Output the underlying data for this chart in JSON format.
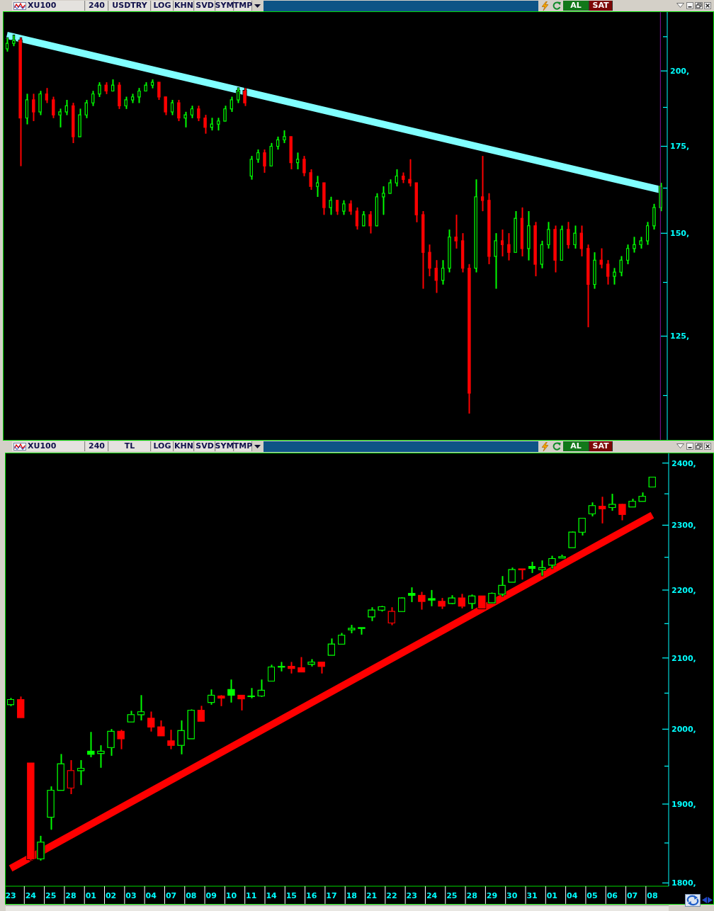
{
  "chart_data": [
    {
      "type": "candlestick",
      "title": "XU100",
      "annotations": [
        "240",
        "USDTRY",
        "LOG",
        "KHN",
        "SVD",
        "SYM",
        "TMP",
        "AL",
        "SAT"
      ],
      "categories": [
        null,
        null,
        null,
        null,
        null,
        null,
        null,
        null,
        null,
        null,
        null,
        null,
        null,
        null,
        null,
        null,
        null,
        null,
        null,
        null,
        null,
        null,
        null,
        null,
        null,
        null,
        null,
        null,
        null,
        null,
        null,
        null,
        null,
        null,
        null,
        null,
        null,
        null,
        null,
        null,
        null,
        null,
        null,
        null,
        null,
        null,
        null,
        null,
        null,
        null,
        null,
        null,
        null,
        null,
        null,
        null,
        null,
        null,
        null,
        null,
        null,
        null,
        null,
        null,
        null,
        null,
        null,
        null,
        null,
        null,
        null,
        null,
        null,
        null,
        null,
        null,
        null,
        null,
        null,
        null,
        null,
        null,
        null,
        null,
        null,
        null,
        null,
        null,
        null,
        null,
        null,
        null,
        null,
        null,
        null,
        null,
        null,
        null,
        null,
        null
      ],
      "ohlc": [
        [
          208,
          212,
          207,
          210
        ],
        [
          210,
          213,
          209,
          211
        ],
        [
          211,
          212,
          169,
          184
        ],
        [
          184,
          192,
          182,
          190
        ],
        [
          190,
          192,
          183,
          186
        ],
        [
          186,
          193,
          185,
          192
        ],
        [
          192,
          194,
          189,
          190
        ],
        [
          190,
          191,
          184,
          185
        ],
        [
          185,
          187,
          181,
          186
        ],
        [
          186,
          190,
          185,
          188
        ],
        [
          188,
          189,
          176,
          178
        ],
        [
          178,
          187,
          178,
          185
        ],
        [
          185,
          190,
          184,
          189
        ],
        [
          189,
          193,
          188,
          192
        ],
        [
          192,
          196,
          191,
          195
        ],
        [
          195,
          196,
          192,
          193
        ],
        [
          193,
          197,
          193,
          195
        ],
        [
          195,
          196,
          187,
          188
        ],
        [
          188,
          191,
          187,
          190
        ],
        [
          190,
          192,
          189,
          191
        ],
        [
          191,
          194,
          189,
          193
        ],
        [
          193,
          196,
          193,
          195
        ],
        [
          195,
          197,
          194,
          196
        ],
        [
          196,
          196,
          190,
          191
        ],
        [
          191,
          191,
          185,
          186
        ],
        [
          186,
          190,
          185,
          189
        ],
        [
          189,
          190,
          183,
          184
        ],
        [
          184,
          186,
          181,
          185
        ],
        [
          185,
          188,
          184,
          187
        ],
        [
          187,
          188,
          183,
          184
        ],
        [
          184,
          185,
          179,
          181
        ],
        [
          181,
          184,
          180,
          182
        ],
        [
          182,
          184,
          180,
          183
        ],
        [
          183,
          188,
          183,
          187
        ],
        [
          187,
          191,
          186,
          190
        ],
        [
          190,
          194,
          189,
          193
        ],
        [
          193,
          194,
          188,
          189
        ],
        [
          166,
          172,
          165,
          171
        ],
        [
          171,
          174,
          170,
          173
        ],
        [
          173,
          174,
          167,
          169
        ],
        [
          169,
          176,
          169,
          175
        ],
        [
          175,
          178,
          174,
          177
        ],
        [
          177,
          180,
          176,
          178
        ],
        [
          178,
          178,
          168,
          170
        ],
        [
          170,
          173,
          168,
          171
        ],
        [
          171,
          172,
          166,
          167
        ],
        [
          167,
          168,
          162,
          163
        ],
        [
          163,
          166,
          160,
          164
        ],
        [
          164,
          164,
          155,
          157
        ],
        [
          157,
          160,
          155,
          159
        ],
        [
          159,
          159,
          155,
          156
        ],
        [
          156,
          159,
          155,
          158
        ],
        [
          158,
          159,
          155,
          156
        ],
        [
          156,
          157,
          151,
          152
        ],
        [
          152,
          156,
          152,
          155
        ],
        [
          155,
          156,
          150,
          152
        ],
        [
          152,
          161,
          152,
          160
        ],
        [
          160,
          163,
          155,
          161
        ],
        [
          161,
          165,
          161,
          164
        ],
        [
          164,
          168,
          163,
          166
        ],
        [
          166,
          167,
          164,
          165
        ],
        [
          165,
          171,
          163,
          164
        ],
        [
          164,
          164,
          153,
          155
        ],
        [
          155,
          156,
          136,
          145
        ],
        [
          145,
          147,
          139,
          141
        ],
        [
          141,
          143,
          135,
          138
        ],
        [
          138,
          143,
          137,
          141
        ],
        [
          141,
          151,
          140,
          149
        ],
        [
          149,
          155,
          146,
          148
        ],
        [
          148,
          150,
          140,
          141
        ],
        [
          141,
          142,
          109,
          113
        ],
        [
          141,
          165,
          140,
          160
        ],
        [
          160,
          172,
          156,
          159
        ],
        [
          159,
          161,
          142,
          144
        ],
        [
          144,
          150,
          136,
          148
        ],
        [
          148,
          151,
          144,
          147
        ],
        [
          147,
          150,
          143,
          145
        ],
        [
          145,
          156,
          145,
          154
        ],
        [
          154,
          157,
          144,
          146
        ],
        [
          146,
          156,
          143,
          152
        ],
        [
          152,
          153,
          139,
          142
        ],
        [
          142,
          148,
          141,
          147
        ],
        [
          147,
          153,
          146,
          151
        ],
        [
          151,
          152,
          140,
          143
        ],
        [
          143,
          152,
          143,
          151
        ],
        [
          151,
          153,
          146,
          147
        ],
        [
          147,
          152,
          146,
          150
        ],
        [
          150,
          152,
          144,
          146
        ],
        [
          146,
          147,
          127,
          137
        ],
        [
          137,
          145,
          136,
          143
        ],
        [
          143,
          146,
          141,
          142
        ],
        [
          142,
          143,
          137,
          139
        ],
        [
          139,
          141,
          137,
          140
        ],
        [
          140,
          144,
          139,
          143
        ],
        [
          143,
          147,
          142,
          146
        ],
        [
          146,
          149,
          145,
          147
        ],
        [
          147,
          149,
          146,
          148
        ],
        [
          148,
          153,
          147,
          152
        ],
        [
          152,
          158,
          151,
          157
        ],
        [
          157,
          164,
          156,
          163
        ]
      ],
      "colors": [
        "#00ff00",
        "#00ff00",
        "#ff0000",
        "#00ff00",
        "#ff0000",
        "#00ff00",
        "#ff0000",
        "#ff0000",
        "#00ff00",
        "#00ff00",
        "#ff0000",
        "#00ff00",
        "#00ff00",
        "#00ff00",
        "#00ff00",
        "#ff0000",
        "#00ff00",
        "#ff0000",
        "#00ff00",
        "#00ff00",
        "#00ff00",
        "#00ff00",
        "#00ff00",
        "#ff0000",
        "#ff0000",
        "#00ff00",
        "#ff0000",
        "#00ff00",
        "#00ff00",
        "#ff0000",
        "#ff0000",
        "#00ff00",
        "#00ff00",
        "#00ff00",
        "#00ff00",
        "#00ff00",
        "#ff0000",
        "#00ff00",
        "#00ff00",
        "#ff0000",
        "#00ff00",
        "#00ff00",
        "#00ff00",
        "#ff0000",
        "#00ff00",
        "#ff0000",
        "#ff0000",
        "#00ff00",
        "#ff0000",
        "#00ff00",
        "#ff0000",
        "#00ff00",
        "#ff0000",
        "#ff0000",
        "#00ff00",
        "#ff0000",
        "#00ff00",
        "#00ff00",
        "#00ff00",
        "#00ff00",
        "#ff0000",
        "#ff0000",
        "#ff0000",
        "#ff0000",
        "#ff0000",
        "#ff0000",
        "#00ff00",
        "#00ff00",
        "#ff0000",
        "#ff0000",
        "#ff0000",
        "#00ff00",
        "#ff0000",
        "#ff0000",
        "#00ff00",
        "#ff0000",
        "#ff0000",
        "#00ff00",
        "#ff0000",
        "#00ff00",
        "#ff0000",
        "#00ff00",
        "#00ff00",
        "#ff0000",
        "#00ff00",
        "#ff0000",
        "#00ff00",
        "#ff0000",
        "#ff0000",
        "#00ff00",
        "#ff0000",
        "#ff0000",
        "#00ff00",
        "#00ff00",
        "#00ff00",
        "#00ff00",
        "#00ff00",
        "#00ff00",
        "#00ff00",
        "#00ff00"
      ],
      "series": [
        {
          "type": "line",
          "color": "#80ffff",
          "values": [
            213,
            null,
            null,
            null,
            null,
            null,
            null,
            null,
            null,
            null,
            null,
            null,
            null,
            null,
            null,
            null,
            null,
            null,
            null,
            null,
            null,
            null,
            null,
            null,
            null,
            null,
            null,
            null,
            null,
            null,
            null,
            null,
            null,
            null,
            null,
            null,
            null,
            null,
            null,
            null,
            null,
            null,
            null,
            null,
            null,
            null,
            null,
            null,
            null,
            null,
            null,
            null,
            null,
            null,
            null,
            null,
            null,
            null,
            null,
            null,
            null,
            null,
            null,
            null,
            null,
            null,
            null,
            null,
            null,
            null,
            null,
            null,
            null,
            null,
            null,
            null,
            null,
            null,
            null,
            null,
            null,
            null,
            null,
            null,
            null,
            null,
            null,
            null,
            null,
            null,
            null,
            null,
            null,
            null,
            null,
            null,
            null,
            null,
            null,
            162
          ]
        }
      ],
      "log": true,
      "ylim": [
        104,
        222
      ],
      "yticks": [
        {
          "value": 112.5,
          "label": null
        },
        {
          "value": 125,
          "label": "125,"
        },
        {
          "value": 137.5,
          "label": null
        },
        {
          "value": 150,
          "label": "150,"
        },
        {
          "value": 162.5,
          "label": null
        },
        {
          "value": 175,
          "label": "175,"
        },
        {
          "value": 187.5,
          "label": null
        },
        {
          "value": 200,
          "label": "200,"
        },
        {
          "value": 212.5,
          "label": null
        }
      ],
      "tick_labels": "y"
    },
    {
      "type": "candlestick",
      "title": "XU100",
      "annotations": [
        "240",
        "TL",
        "LOG",
        "KHN",
        "SVD",
        "SYM",
        "TMP",
        "AL",
        "SAT"
      ],
      "categories": [
        "23",
        null,
        "24",
        null,
        "25",
        null,
        "28",
        null,
        "01",
        null,
        "02",
        null,
        "03",
        null,
        "04",
        null,
        "07",
        null,
        "08",
        null,
        "09",
        null,
        "10",
        null,
        "11",
        null,
        "14",
        null,
        "15",
        null,
        "16",
        null,
        "17",
        null,
        "18",
        null,
        "21",
        null,
        "22",
        null,
        "23",
        null,
        "24",
        null,
        "25",
        null,
        "28",
        null,
        "29",
        null,
        "30",
        null,
        "31",
        null,
        "01",
        null,
        "04",
        null,
        "05",
        null,
        "06",
        null,
        "07",
        null,
        "08"
      ],
      "ohlc": [
        [
          2034,
          2043,
          2032,
          2041
        ],
        [
          2041,
          2045,
          2016,
          2016
        ],
        [
          1954,
          1954,
          1828,
          1830
        ],
        [
          1830,
          1859,
          1828,
          1851
        ],
        [
          1883,
          1923,
          1867,
          1918
        ],
        [
          1918,
          1966,
          1918,
          1953
        ],
        [
          1921,
          1958,
          1913,
          1944
        ],
        [
          1944,
          1958,
          1925,
          1947
        ],
        [
          1970,
          1996,
          1962,
          1966
        ],
        [
          1967,
          1978,
          1948,
          1970
        ],
        [
          1975,
          2000,
          1964,
          1997
        ],
        [
          1997,
          1999,
          1973,
          1987
        ],
        [
          2010,
          2025,
          2010,
          2020
        ],
        [
          2020,
          2047,
          2012,
          2024
        ],
        [
          2015,
          2024,
          1997,
          2003
        ],
        [
          2003,
          2012,
          1991,
          1991
        ],
        [
          1984,
          1999,
          1973,
          1978
        ],
        [
          1978,
          2012,
          1966,
          1998
        ],
        [
          1987,
          2027,
          1987,
          2026
        ],
        [
          2026,
          2032,
          2011,
          2011
        ],
        [
          2037,
          2055,
          2034,
          2047
        ],
        [
          2046,
          2047,
          2032,
          2043
        ],
        [
          2055,
          2069,
          2037,
          2047
        ],
        [
          2047,
          2047,
          2026,
          2042
        ],
        [
          2045,
          2057,
          2043,
          2046
        ],
        [
          2046,
          2069,
          2045,
          2054
        ],
        [
          2067,
          2090,
          2067,
          2087
        ],
        [
          2087,
          2094,
          2081,
          2088
        ],
        [
          2088,
          2094,
          2078,
          2085
        ],
        [
          2086,
          2101,
          2080,
          2080
        ],
        [
          2091,
          2098,
          2088,
          2094
        ],
        [
          2094,
          2094,
          2078,
          2088
        ],
        [
          2104,
          2128,
          2104,
          2120
        ],
        [
          2120,
          2136,
          2120,
          2133
        ],
        [
          2141,
          2148,
          2136,
          2143
        ],
        [
          2143,
          2144,
          2134,
          2144
        ],
        [
          2160,
          2174,
          2154,
          2170
        ],
        [
          2170,
          2176,
          2168,
          2175
        ],
        [
          2151,
          2174,
          2148,
          2168
        ],
        [
          2168,
          2189,
          2168,
          2188
        ],
        [
          2195,
          2204,
          2182,
          2192
        ],
        [
          2192,
          2197,
          2171,
          2183
        ],
        [
          2187,
          2200,
          2176,
          2185
        ],
        [
          2183,
          2188,
          2172,
          2176
        ],
        [
          2180,
          2192,
          2179,
          2188
        ],
        [
          2188,
          2194,
          2173,
          2176
        ],
        [
          2180,
          2193,
          2172,
          2191
        ],
        [
          2191,
          2191,
          2173,
          2173
        ],
        [
          2181,
          2196,
          2181,
          2195
        ],
        [
          2194,
          2221,
          2191,
          2207
        ],
        [
          2212,
          2234,
          2212,
          2231
        ],
        [
          2232,
          2232,
          2216,
          2231
        ],
        [
          2236,
          2243,
          2226,
          2233
        ],
        [
          2231,
          2245,
          2222,
          2234
        ],
        [
          2238,
          2252,
          2233,
          2248
        ],
        [
          2249,
          2254,
          2249,
          2251
        ],
        [
          2265,
          2290,
          2265,
          2289
        ],
        [
          2289,
          2311,
          2284,
          2311
        ],
        [
          2318,
          2336,
          2314,
          2331
        ],
        [
          2330,
          2345,
          2303,
          2326
        ],
        [
          2328,
          2350,
          2323,
          2333
        ],
        [
          2333,
          2334,
          2308,
          2317
        ],
        [
          2329,
          2342,
          2329,
          2338
        ],
        [
          2338,
          2352,
          2338,
          2346
        ],
        [
          2361,
          2377,
          2361,
          2377
        ]
      ],
      "colors": [
        "#00ff00",
        "#ff0000",
        "#ff0000",
        "#00ff00",
        "#00ff00",
        "#00ff00",
        "#ff0000",
        "#00ff00",
        "#00ff00",
        "#00ff00",
        "#00ff00",
        "#ff0000",
        "#00ff00",
        "#00ff00",
        "#ff0000",
        "#ff0000",
        "#ff0000",
        "#00ff00",
        "#00ff00",
        "#ff0000",
        "#00ff00",
        "#ff0000",
        "#00ff00",
        "#ff0000",
        "#00ff00",
        "#00ff00",
        "#00ff00",
        "#00ff00",
        "#ff0000",
        "#ff0000",
        "#00ff00",
        "#ff0000",
        "#00ff00",
        "#00ff00",
        "#00ff00",
        "#00ff00",
        "#00ff00",
        "#00ff00",
        "#ff0000",
        "#00ff00",
        "#00ff00",
        "#ff0000",
        "#00ff00",
        "#ff0000",
        "#00ff00",
        "#ff0000",
        "#00ff00",
        "#ff0000",
        "#00ff00",
        "#00ff00",
        "#00ff00",
        "#ff0000",
        "#00ff00",
        "#00ff00",
        "#00ff00",
        "#00ff00",
        "#00ff00",
        "#00ff00",
        "#00ff00",
        "#ff0000",
        "#00ff00",
        "#ff0000",
        "#00ff00",
        "#00ff00",
        "#00ff00"
      ],
      "series": [
        {
          "type": "line",
          "color": "#ff0000",
          "values": [
            1818,
            null,
            null,
            null,
            null,
            null,
            null,
            null,
            null,
            null,
            null,
            null,
            null,
            null,
            null,
            null,
            null,
            null,
            null,
            null,
            null,
            null,
            null,
            null,
            null,
            null,
            null,
            null,
            null,
            null,
            null,
            null,
            null,
            null,
            null,
            null,
            null,
            null,
            null,
            null,
            null,
            null,
            null,
            null,
            null,
            null,
            null,
            null,
            null,
            null,
            null,
            null,
            null,
            null,
            null,
            null,
            null,
            null,
            null,
            null,
            null,
            null,
            null,
            null,
            2316
          ]
        }
      ],
      "log": true,
      "ylim": [
        1796,
        2416
      ],
      "yticks": [
        {
          "value": 1800,
          "label": "1800,"
        },
        {
          "value": 1850,
          "label": null
        },
        {
          "value": 1900,
          "label": "1900,"
        },
        {
          "value": 1950,
          "label": null
        },
        {
          "value": 2000,
          "label": "2000,"
        },
        {
          "value": 2050,
          "label": null
        },
        {
          "value": 2100,
          "label": "2100,"
        },
        {
          "value": 2150,
          "label": null
        },
        {
          "value": 2200,
          "label": "2200,"
        },
        {
          "value": 2250,
          "label": null
        },
        {
          "value": 2300,
          "label": "2300,"
        },
        {
          "value": 2350,
          "label": null
        },
        {
          "value": 2400,
          "label": "2400,"
        }
      ]
    }
  ]
}
